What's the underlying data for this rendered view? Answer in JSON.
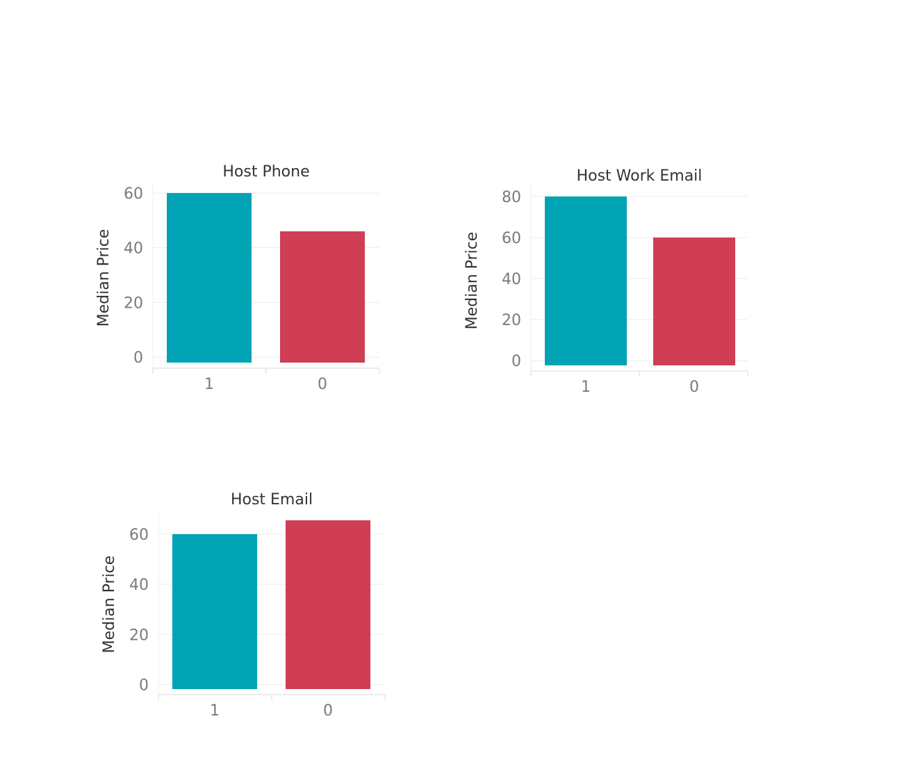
{
  "colors": {
    "series_1": "#00a3b4",
    "series_0": "#cf3e54",
    "grid": "#ececec",
    "axis": "#e6e6e6"
  },
  "chart_data": [
    {
      "type": "bar",
      "title": "Host Phone",
      "ylabel": "Median Price",
      "xlabel": "",
      "categories": [
        "1",
        "0"
      ],
      "values": [
        60,
        46
      ],
      "ylim": [
        -4,
        62
      ],
      "yticks": [
        0,
        20,
        40,
        60
      ],
      "grid": true
    },
    {
      "type": "bar",
      "title": "Host Work Email",
      "ylabel": "Median Price",
      "xlabel": "",
      "categories": [
        "1",
        "0"
      ],
      "values": [
        80,
        60
      ],
      "ylim": [
        -5,
        83
      ],
      "yticks": [
        0,
        20,
        40,
        60,
        80
      ],
      "grid": true
    },
    {
      "type": "bar",
      "title": "Host Email",
      "ylabel": "Median Price",
      "xlabel": "",
      "categories": [
        "1",
        "0"
      ],
      "values": [
        60,
        65.5
      ],
      "ylim": [
        -4,
        68
      ],
      "yticks": [
        0,
        20,
        40,
        60
      ],
      "grid": true
    }
  ]
}
